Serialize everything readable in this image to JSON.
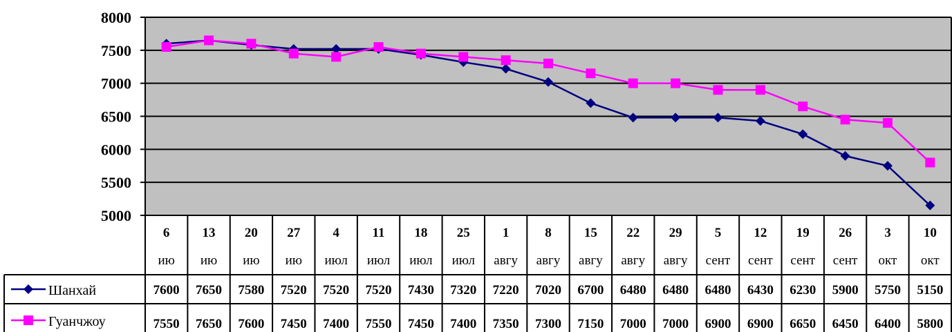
{
  "chart_data": {
    "type": "line",
    "title": "",
    "xlabel": "",
    "ylabel": "",
    "ylim": [
      5000,
      8000
    ],
    "yticks": [
      "8000",
      "7500",
      "7000",
      "6500",
      "6000",
      "5500",
      "5000"
    ],
    "grid": true,
    "legend": "data-table",
    "plot_background": "#c0c0c0",
    "categories": [
      {
        "day": "6",
        "month": "ию"
      },
      {
        "day": "13",
        "month": "ию"
      },
      {
        "day": "20",
        "month": "ию"
      },
      {
        "day": "27",
        "month": "ию"
      },
      {
        "day": "4",
        "month": "июл"
      },
      {
        "day": "11",
        "month": "июл"
      },
      {
        "day": "18",
        "month": "июл"
      },
      {
        "day": "25",
        "month": "июл"
      },
      {
        "day": "1",
        "month": "авгу"
      },
      {
        "day": "8",
        "month": "авгу"
      },
      {
        "day": "15",
        "month": "авгу"
      },
      {
        "day": "22",
        "month": "авгу"
      },
      {
        "day": "29",
        "month": "авгу"
      },
      {
        "day": "5",
        "month": "сент"
      },
      {
        "day": "12",
        "month": "сент"
      },
      {
        "day": "19",
        "month": "сент"
      },
      {
        "day": "26",
        "month": "сент"
      },
      {
        "day": "3",
        "month": "окт"
      },
      {
        "day": "10",
        "month": "окт"
      }
    ],
    "series": [
      {
        "name": "Шанхай",
        "color": "#000080",
        "marker": "diamond",
        "values": [
          7600,
          7650,
          7580,
          7520,
          7520,
          7520,
          7430,
          7320,
          7220,
          7020,
          6700,
          6480,
          6480,
          6480,
          6430,
          6230,
          5900,
          5750,
          5150
        ]
      },
      {
        "name": "Гуанчжоу",
        "color": "#ff00ff",
        "marker": "square",
        "values": [
          7550,
          7650,
          7600,
          7450,
          7400,
          7550,
          7450,
          7400,
          7350,
          7300,
          7150,
          7000,
          7000,
          6900,
          6900,
          6650,
          6450,
          6400,
          5800
        ]
      }
    ]
  }
}
